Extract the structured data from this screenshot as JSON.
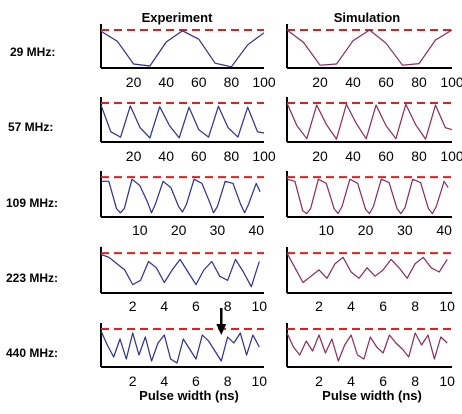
{
  "figure": {
    "columns": [
      "Experiment",
      "Simulation"
    ],
    "xlabel": "Pulse width (ns)",
    "colors": {
      "experiment_trace": "#2b2f8f",
      "simulation_trace": "#8a2b5a",
      "reference_line": "#e02020",
      "axis": "#000000"
    },
    "reference_line_style": "dashed",
    "arrow_annotation": {
      "row": 4,
      "column": 0,
      "x": 7.6,
      "direction": "down"
    }
  },
  "chart_data": [
    {
      "type": "line",
      "column": "Experiment",
      "row_label": "29 MHz:",
      "xlim": [
        0,
        100
      ],
      "xticks": [
        20,
        40,
        60,
        80,
        100
      ],
      "ylim": [
        0,
        1
      ],
      "reference_y": 0.95,
      "series": [
        {
          "x": [
            0,
            10,
            20,
            30,
            40,
            50,
            60,
            70,
            80,
            90,
            100
          ],
          "y": [
            0.92,
            0.67,
            0.1,
            0.05,
            0.65,
            0.93,
            0.72,
            0.12,
            0.03,
            0.58,
            0.88
          ]
        }
      ]
    },
    {
      "type": "line",
      "column": "Simulation",
      "row_label": "29 MHz:",
      "xlim": [
        0,
        100
      ],
      "xticks": [
        20,
        40,
        60,
        80,
        100
      ],
      "ylim": [
        0,
        1
      ],
      "reference_y": 0.95,
      "series": [
        {
          "x": [
            0,
            10,
            20,
            30,
            40,
            50,
            60,
            70,
            80,
            90,
            100
          ],
          "y": [
            0.95,
            0.64,
            0.07,
            0.1,
            0.68,
            0.95,
            0.62,
            0.07,
            0.11,
            0.7,
            0.95
          ]
        }
      ]
    },
    {
      "type": "line",
      "column": "Experiment",
      "row_label": "57 MHz:",
      "xlim": [
        0,
        100
      ],
      "xticks": [
        20,
        40,
        60,
        80,
        100
      ],
      "ylim": [
        0,
        1
      ],
      "reference_y": 0.95,
      "series": [
        {
          "x": [
            0,
            6,
            12,
            18,
            24,
            30,
            36,
            42,
            48,
            54,
            60,
            66,
            72,
            78,
            84,
            90,
            96,
            100
          ],
          "y": [
            0.9,
            0.25,
            0.12,
            0.88,
            0.35,
            0.1,
            0.86,
            0.4,
            0.1,
            0.85,
            0.3,
            0.12,
            0.87,
            0.35,
            0.12,
            0.85,
            0.25,
            0.22
          ]
        }
      ]
    },
    {
      "type": "line",
      "column": "Simulation",
      "row_label": "57 MHz:",
      "xlim": [
        0,
        100
      ],
      "xticks": [
        20,
        40,
        60,
        80,
        100
      ],
      "ylim": [
        0,
        1
      ],
      "reference_y": 0.95,
      "series": [
        {
          "x": [
            0,
            6,
            12,
            18,
            24,
            30,
            36,
            42,
            48,
            54,
            60,
            66,
            72,
            78,
            84,
            90,
            96,
            100
          ],
          "y": [
            0.95,
            0.4,
            0.08,
            0.9,
            0.42,
            0.07,
            0.92,
            0.45,
            0.08,
            0.9,
            0.4,
            0.08,
            0.92,
            0.42,
            0.07,
            0.9,
            0.35,
            0.3
          ]
        }
      ]
    },
    {
      "type": "line",
      "column": "Experiment",
      "row_label": "109 MHz:",
      "xlim": [
        0,
        42
      ],
      "xticks": [
        10,
        20,
        30,
        40
      ],
      "ylim": [
        0,
        1
      ],
      "reference_y": 0.95,
      "series": [
        {
          "x": [
            0,
            2,
            4,
            5,
            6,
            8,
            10,
            12,
            13,
            14,
            16,
            18,
            20,
            21,
            22,
            24,
            26,
            28,
            29,
            30,
            32,
            34,
            36,
            37,
            38,
            40,
            41
          ],
          "y": [
            0.85,
            0.85,
            0.2,
            0.1,
            0.2,
            0.9,
            0.75,
            0.35,
            0.1,
            0.3,
            0.85,
            0.7,
            0.25,
            0.12,
            0.3,
            0.9,
            0.8,
            0.35,
            0.1,
            0.25,
            0.85,
            0.8,
            0.3,
            0.1,
            0.3,
            0.8,
            0.6
          ]
        }
      ]
    },
    {
      "type": "line",
      "column": "Simulation",
      "row_label": "109 MHz:",
      "xlim": [
        0,
        42
      ],
      "xticks": [
        10,
        20,
        30,
        40
      ],
      "ylim": [
        0,
        1
      ],
      "reference_y": 0.95,
      "series": [
        {
          "x": [
            0,
            2,
            4,
            5,
            6,
            8,
            10,
            12,
            13,
            14,
            16,
            18,
            20,
            21,
            22,
            24,
            26,
            28,
            29,
            30,
            32,
            34,
            36,
            37,
            38,
            40,
            41
          ],
          "y": [
            0.9,
            0.85,
            0.15,
            0.08,
            0.2,
            0.9,
            0.8,
            0.2,
            0.08,
            0.25,
            0.9,
            0.8,
            0.18,
            0.08,
            0.25,
            0.9,
            0.82,
            0.2,
            0.08,
            0.22,
            0.9,
            0.82,
            0.2,
            0.08,
            0.25,
            0.85,
            0.7
          ]
        }
      ]
    },
    {
      "type": "line",
      "column": "Experiment",
      "row_label": "223 MHz:",
      "xlim": [
        0,
        10.3
      ],
      "xticks": [
        2,
        4,
        6,
        8,
        10
      ],
      "ylim": [
        0,
        1
      ],
      "reference_y": 0.95,
      "series": [
        {
          "x": [
            0,
            0.5,
            1,
            1.5,
            2,
            2.5,
            3,
            3.5,
            4,
            4.5,
            5,
            5.5,
            6,
            6.5,
            7,
            7.5,
            8,
            8.5,
            9,
            9.5,
            10
          ],
          "y": [
            0.92,
            0.85,
            0.7,
            0.55,
            0.2,
            0.3,
            0.75,
            0.6,
            0.25,
            0.55,
            0.8,
            0.5,
            0.2,
            0.55,
            0.75,
            0.4,
            0.3,
            0.8,
            0.5,
            0.15,
            0.75
          ]
        }
      ]
    },
    {
      "type": "line",
      "column": "Simulation",
      "row_label": "223 MHz:",
      "xlim": [
        0,
        10.3
      ],
      "xticks": [
        2,
        4,
        6,
        8,
        10
      ],
      "ylim": [
        0,
        1
      ],
      "reference_y": 0.95,
      "series": [
        {
          "x": [
            0,
            0.5,
            1,
            1.5,
            2,
            2.5,
            3,
            3.5,
            4,
            4.5,
            5,
            5.5,
            6,
            6.5,
            7,
            7.5,
            8,
            8.5,
            9,
            9.5,
            10
          ],
          "y": [
            0.95,
            0.6,
            0.25,
            0.4,
            0.55,
            0.35,
            0.7,
            0.85,
            0.5,
            0.35,
            0.6,
            0.4,
            0.55,
            0.8,
            0.6,
            0.35,
            0.7,
            0.85,
            0.6,
            0.5,
            0.8
          ]
        }
      ]
    },
    {
      "type": "line",
      "column": "Experiment",
      "row_label": "440 MHz:",
      "xlim": [
        0,
        10.3
      ],
      "xticks": [
        2,
        4,
        6,
        8,
        10
      ],
      "ylim": [
        0,
        1
      ],
      "reference_y": 0.95,
      "series": [
        {
          "x": [
            0,
            0.4,
            0.8,
            1.2,
            1.6,
            2,
            2.4,
            2.8,
            3.2,
            3.6,
            4,
            4.4,
            4.8,
            5.2,
            5.6,
            6,
            6.4,
            6.8,
            7.2,
            7.6,
            8,
            8.4,
            8.8,
            9.2,
            9.6,
            10
          ],
          "y": [
            0.9,
            0.55,
            0.25,
            0.7,
            0.2,
            0.85,
            0.3,
            0.75,
            0.15,
            0.6,
            0.8,
            0.2,
            0.1,
            0.7,
            0.45,
            0.2,
            0.8,
            0.65,
            0.4,
            0.15,
            0.75,
            0.6,
            0.85,
            0.3,
            0.8,
            0.5
          ]
        }
      ]
    },
    {
      "type": "line",
      "column": "Simulation",
      "row_label": "440 MHz:",
      "xlim": [
        0,
        10.3
      ],
      "xticks": [
        2,
        4,
        6,
        8,
        10
      ],
      "ylim": [
        0,
        1
      ],
      "reference_y": 0.95,
      "series": [
        {
          "x": [
            0,
            0.4,
            0.8,
            1.2,
            1.6,
            2,
            2.4,
            2.8,
            3.2,
            3.6,
            4,
            4.4,
            4.8,
            5.2,
            5.6,
            6,
            6.4,
            6.8,
            7.2,
            7.6,
            8,
            8.4,
            8.8,
            9.2,
            9.6,
            10
          ],
          "y": [
            0.85,
            0.5,
            0.3,
            0.65,
            0.4,
            0.8,
            0.35,
            0.7,
            0.15,
            0.55,
            0.8,
            0.3,
            0.2,
            0.75,
            0.5,
            0.35,
            0.8,
            0.6,
            0.45,
            0.25,
            0.85,
            0.55,
            0.8,
            0.2,
            0.75,
            0.6
          ]
        }
      ]
    }
  ]
}
